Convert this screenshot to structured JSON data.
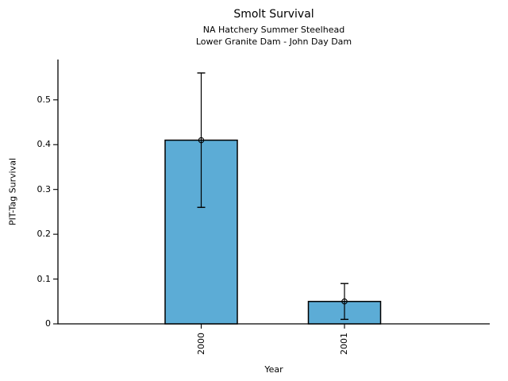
{
  "chart_data": {
    "type": "bar",
    "title": "Smolt Survival",
    "subtitle_lines": [
      "NA Hatchery Summer Steelhead",
      "Lower Granite Dam - John Day Dam"
    ],
    "xlabel": "Year",
    "ylabel": "PIT-Tag Survival",
    "categories": [
      "2000",
      "2001"
    ],
    "values": [
      0.41,
      0.05
    ],
    "error_low": [
      0.26,
      0.01
    ],
    "error_high": [
      0.56,
      0.09
    ],
    "y_ticks": [
      "0",
      "0.1",
      "0.2",
      "0.3",
      "0.4",
      "0.5"
    ],
    "y_tick_values": [
      0,
      0.1,
      0.2,
      0.3,
      0.4,
      0.5
    ],
    "ylim": [
      0,
      0.59
    ],
    "grid": false,
    "legend": "none",
    "marker": "open-circle",
    "bar_color": "#5CACD6",
    "bar_edge_color": "#000000",
    "axis_color": "#000000"
  }
}
